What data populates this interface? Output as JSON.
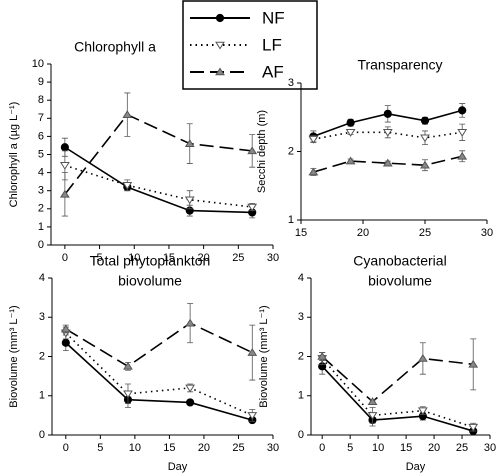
{
  "legend": [
    {
      "name": "NF",
      "color": "#000000",
      "dash": "solid",
      "marker": "circle"
    },
    {
      "name": "LF",
      "color": "#000000",
      "dash": "dotted",
      "marker": "triangle-down-open"
    },
    {
      "name": "AF",
      "color": "#000000",
      "dash": "dashed",
      "marker": "triangle-up-grey"
    }
  ],
  "chart_data": [
    {
      "type": "line",
      "title": [
        "Chlorophyll a"
      ],
      "ylabel": "Chlorophyll a (µg L⁻¹)",
      "x": [
        0,
        9,
        18,
        27
      ],
      "xlim": [
        -2,
        30
      ],
      "xticks": [
        0,
        5,
        10,
        15,
        20,
        25,
        30
      ],
      "ylim": [
        0,
        10
      ],
      "yticks": [
        0,
        1,
        2,
        3,
        4,
        5,
        6,
        7,
        8,
        9,
        10
      ],
      "series": [
        {
          "values": [
            5.4,
            3.2,
            1.9,
            1.8
          ],
          "errors": [
            0.5,
            0.2,
            0.3,
            0.3
          ]
        },
        {
          "values": [
            4.4,
            3.3,
            2.5,
            2.1
          ],
          "errors": [
            0.8,
            0.3,
            0.5,
            0.2
          ]
        },
        {
          "values": [
            2.8,
            7.2,
            5.6,
            5.2
          ],
          "errors": [
            1.2,
            1.2,
            1.1,
            0.9
          ]
        }
      ]
    },
    {
      "type": "line",
      "title": [
        "Transparency"
      ],
      "ylabel": "Secchi depth (m)",
      "x": [
        16,
        19,
        22,
        25,
        28
      ],
      "xlim": [
        15,
        30
      ],
      "xticks": [
        15,
        20,
        25,
        30
      ],
      "ylim": [
        1,
        3
      ],
      "yticks": [
        1,
        2,
        3
      ],
      "series": [
        {
          "values": [
            2.22,
            2.42,
            2.55,
            2.45,
            2.6
          ],
          "errors": [
            0.08,
            0.05,
            0.12,
            0.05,
            0.1
          ]
        },
        {
          "values": [
            2.18,
            2.28,
            2.28,
            2.2,
            2.28
          ],
          "errors": [
            0.05,
            0.03,
            0.08,
            0.1,
            0.12
          ]
        },
        {
          "values": [
            1.7,
            1.86,
            1.83,
            1.8,
            1.93
          ],
          "errors": [
            0.05,
            0.03,
            0.03,
            0.08,
            0.08
          ]
        }
      ]
    },
    {
      "type": "line",
      "title": [
        "Total phytoplankton",
        "biovolume"
      ],
      "ylabel": "Biovolume (mm³ L⁻¹)",
      "xlabel": "Day",
      "x": [
        0,
        9,
        18,
        27
      ],
      "xlim": [
        -2,
        30
      ],
      "xticks": [
        0,
        5,
        10,
        15,
        20,
        25,
        30
      ],
      "ylim": [
        0,
        4
      ],
      "yticks": [
        0,
        1,
        2,
        3,
        4
      ],
      "series": [
        {
          "values": [
            2.35,
            0.9,
            0.83,
            0.38
          ],
          "errors": [
            0.2,
            0.2,
            0.03,
            0.05
          ]
        },
        {
          "values": [
            2.6,
            1.05,
            1.2,
            0.5
          ],
          "errors": [
            0.15,
            0.25,
            0.1,
            0.15
          ]
        },
        {
          "values": [
            2.7,
            1.75,
            2.85,
            2.1
          ],
          "errors": [
            0.1,
            0.1,
            0.5,
            0.7
          ]
        }
      ]
    },
    {
      "type": "line",
      "title": [
        "Cyanobacterial",
        "biovolume"
      ],
      "ylabel": "Biovolume (mm³ L⁻¹)",
      "xlabel": "Day",
      "x": [
        0,
        9,
        18,
        27
      ],
      "xlim": [
        -2,
        30
      ],
      "xticks": [
        0,
        5,
        10,
        15,
        20,
        25,
        30
      ],
      "ylim": [
        0,
        4
      ],
      "yticks": [
        0,
        1,
        2,
        3,
        4
      ],
      "series": [
        {
          "values": [
            1.75,
            0.38,
            0.48,
            0.1
          ],
          "errors": [
            0.2,
            0.15,
            0.1,
            0.05
          ]
        },
        {
          "values": [
            1.95,
            0.5,
            0.62,
            0.2
          ],
          "errors": [
            0.15,
            0.2,
            0.1,
            0.1
          ]
        },
        {
          "values": [
            2.0,
            0.85,
            1.95,
            1.8
          ],
          "errors": [
            0.1,
            0.05,
            0.4,
            0.65
          ]
        }
      ]
    }
  ]
}
